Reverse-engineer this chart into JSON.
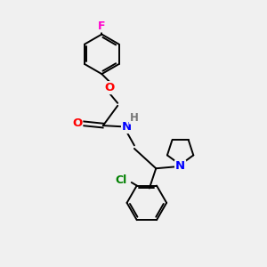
{
  "bg_color": "#f0f0f0",
  "bond_color": "#000000",
  "atom_colors": {
    "F": "#ff00cc",
    "O": "#ff0000",
    "N": "#0000ff",
    "Cl": "#008000",
    "H": "#777777",
    "C": "#000000"
  },
  "bond_width": 1.4,
  "font_size": 8.5,
  "figsize": [
    3.0,
    3.0
  ],
  "dpi": 100,
  "xlim": [
    0,
    10
  ],
  "ylim": [
    0,
    10
  ]
}
